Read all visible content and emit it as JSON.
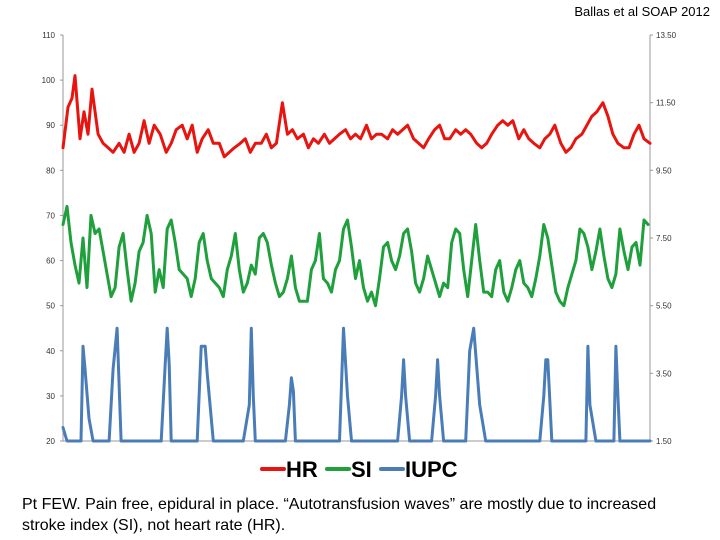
{
  "citation": "Ballas et al SOAP 2012",
  "caption": "Pt FEW. Pain free, epidural in place. “Autotransfusion waves” are mostly due to increased stroke index (SI), not heart rate (HR).",
  "chart_data": {
    "type": "line",
    "title": "",
    "xlabel": "",
    "ylabel": "",
    "left_axis": {
      "ticks": [
        "110",
        "100",
        "90",
        "80",
        "70",
        "60",
        "50",
        "40",
        "30",
        "20"
      ],
      "ylim": [
        20,
        110
      ]
    },
    "right_axis": {
      "ticks": [
        "13.50",
        "11.50",
        "9.50",
        "7.50",
        "5.50",
        "3.50",
        "1.50"
      ],
      "ylim": [
        1.5,
        13.5
      ]
    },
    "grid": false,
    "legend_position": "bottom-center",
    "colors": {
      "HR": "#e8140f",
      "SI": "#1fa03c",
      "IUPC": "#4a7db8"
    },
    "series": [
      {
        "name": "HR",
        "axis": "left",
        "x": [
          0,
          5,
          9,
          12,
          17,
          21,
          25,
          29,
          35,
          40,
          45,
          50,
          56,
          61,
          66,
          71,
          76,
          81,
          86,
          91,
          97,
          103,
          108,
          113,
          119,
          124,
          129,
          134,
          139,
          145,
          150,
          156,
          161,
          166,
          171,
          177,
          182,
          187,
          192,
          198,
          203,
          208,
          213,
          219,
          224,
          229,
          234,
          240,
          245,
          250,
          255,
          261,
          266,
          271,
          276,
          282,
          287,
          292,
          297,
          303,
          308,
          313,
          318,
          324,
          329,
          334,
          339,
          344,
          350,
          355,
          360,
          365,
          371,
          376,
          381,
          386,
          392,
          397,
          402,
          407,
          413,
          418,
          423,
          428,
          434,
          439,
          444,
          449,
          455,
          460,
          465,
          470,
          476,
          481,
          486,
          491,
          497,
          502,
          507,
          512,
          518,
          523,
          528,
          533,
          539,
          544,
          549,
          554,
          560,
          565,
          570,
          575,
          580,
          586
        ],
        "values": [
          85,
          94,
          96,
          101,
          87,
          93,
          88,
          98,
          88,
          86,
          85,
          84,
          86,
          84,
          88,
          84,
          86,
          91,
          86,
          90,
          88,
          84,
          86,
          89,
          90,
          87,
          90,
          84,
          87,
          89,
          86,
          86,
          83,
          84,
          85,
          86,
          87,
          84,
          86,
          86,
          88,
          85,
          86,
          95,
          88,
          89,
          87,
          88,
          85,
          87,
          86,
          88,
          86,
          87,
          88,
          89,
          87,
          88,
          87,
          90,
          87,
          88,
          88,
          87,
          89,
          88,
          89,
          90,
          87,
          86,
          85,
          87,
          89,
          90,
          87,
          87,
          89,
          88,
          89,
          88,
          86,
          85,
          86,
          88,
          90,
          91,
          90,
          91,
          87,
          89,
          87,
          86,
          85,
          87,
          88,
          90,
          86,
          84,
          85,
          87,
          88,
          90,
          92,
          93,
          95,
          92,
          88,
          86,
          85,
          85,
          88,
          90,
          87,
          86
        ]
      },
      {
        "name": "SI",
        "axis": "left",
        "x": [
          0,
          4,
          8,
          12,
          16,
          20,
          24,
          28,
          32,
          36,
          40,
          44,
          48,
          52,
          56,
          60,
          64,
          68,
          72,
          76,
          80,
          84,
          88,
          92,
          96,
          100,
          104,
          108,
          112,
          116,
          120,
          124,
          128,
          132,
          136,
          140,
          144,
          148,
          152,
          156,
          160,
          164,
          168,
          172,
          176,
          180,
          184,
          188,
          192,
          196,
          200,
          204,
          208,
          212,
          216,
          220,
          224,
          228,
          232,
          236,
          240,
          244,
          248,
          252,
          256,
          260,
          264,
          268,
          272,
          276,
          280,
          284,
          288,
          292,
          296,
          300,
          304,
          308,
          312,
          316,
          320,
          324,
          328,
          332,
          336,
          340,
          344,
          348,
          352,
          356,
          360,
          364,
          368,
          372,
          376,
          380,
          384,
          388,
          392,
          396,
          400,
          404,
          408,
          412,
          416,
          420,
          424,
          428,
          432,
          436,
          440,
          444,
          448,
          452,
          456,
          460,
          464,
          468,
          472,
          476,
          480,
          484,
          488,
          492,
          496,
          500,
          504,
          508,
          512,
          516,
          520,
          524,
          528,
          532,
          536,
          540,
          544,
          548,
          552,
          556,
          560,
          564,
          568,
          572,
          576,
          580,
          584
        ],
        "values": [
          68,
          72,
          64,
          59,
          55,
          65,
          54,
          70,
          66,
          67,
          62,
          57,
          52,
          54,
          63,
          66,
          58,
          51,
          55,
          62,
          64,
          70,
          66,
          53,
          58,
          54,
          67,
          69,
          64,
          58,
          57,
          56,
          52,
          56,
          64,
          66,
          60,
          56,
          55,
          54,
          52,
          58,
          61,
          66,
          58,
          53,
          55,
          59,
          57,
          65,
          66,
          64,
          59,
          55,
          52,
          53,
          56,
          61,
          54,
          51,
          51,
          51,
          58,
          60,
          66,
          56,
          55,
          53,
          58,
          60,
          67,
          69,
          63,
          56,
          60,
          54,
          51,
          53,
          50,
          56,
          63,
          64,
          60,
          58,
          61,
          66,
          67,
          62,
          55,
          53,
          56,
          61,
          58,
          55,
          52,
          55,
          54,
          64,
          67,
          66,
          58,
          52,
          60,
          68,
          60,
          53,
          53,
          52,
          58,
          60,
          53,
          51,
          54,
          58,
          60,
          55,
          54,
          52,
          56,
          61,
          68,
          65,
          59,
          53,
          51,
          50,
          54,
          57,
          60,
          67,
          66,
          63,
          58,
          62,
          67,
          61,
          56,
          54,
          57,
          67,
          62,
          58,
          63,
          64,
          59,
          69,
          68
        ]
      },
      {
        "name": "IUPC",
        "axis": "left",
        "x": [
          0,
          4,
          10,
          14,
          18,
          20,
          22,
          26,
          30,
          34,
          38,
          42,
          46,
          50,
          54,
          58,
          62,
          66,
          70,
          74,
          78,
          82,
          90,
          98,
          102,
          104,
          106,
          108,
          112,
          118,
          126,
          134,
          138,
          140,
          142,
          144,
          150,
          160,
          170,
          180,
          186,
          188,
          190,
          192,
          198,
          208,
          218,
          222,
          226,
          228,
          230,
          232,
          236,
          242,
          250,
          260,
          270,
          276,
          280,
          284,
          288,
          294,
          300,
          310,
          320,
          330,
          334,
          338,
          340,
          342,
          346,
          352,
          360,
          368,
          372,
          374,
          376,
          380,
          386,
          392,
          398,
          402,
          406,
          410,
          416,
          422,
          428,
          434,
          436,
          440,
          444,
          450,
          460,
          470,
          476,
          480,
          482,
          484,
          488,
          494,
          500,
          508,
          516,
          520,
          522,
          524,
          526,
          532,
          540,
          546,
          550,
          552,
          554,
          556,
          560,
          562,
          564,
          568,
          580,
          586
        ],
        "values": [
          23,
          20,
          20,
          20,
          20,
          41,
          36,
          25,
          20,
          20,
          20,
          20,
          20,
          36,
          45,
          20,
          20,
          20,
          20,
          20,
          20,
          20,
          20,
          20,
          37,
          45,
          37,
          20,
          20,
          20,
          20,
          20,
          41,
          41,
          41,
          35,
          20,
          20,
          20,
          20,
          28,
          45,
          30,
          20,
          20,
          20,
          20,
          20,
          28,
          34,
          31,
          20,
          20,
          20,
          20,
          20,
          20,
          20,
          45,
          30,
          20,
          20,
          20,
          20,
          20,
          20,
          20,
          30,
          38,
          30,
          20,
          20,
          20,
          20,
          30,
          38,
          30,
          20,
          20,
          20,
          20,
          20,
          40,
          45,
          28,
          20,
          20,
          20,
          20,
          20,
          20,
          20,
          20,
          20,
          20,
          30,
          38,
          38,
          20,
          20,
          20,
          20,
          20,
          20,
          20,
          41,
          28,
          20,
          20,
          20,
          20,
          41,
          30,
          20,
          20,
          20,
          20,
          20,
          20,
          20
        ]
      }
    ]
  }
}
